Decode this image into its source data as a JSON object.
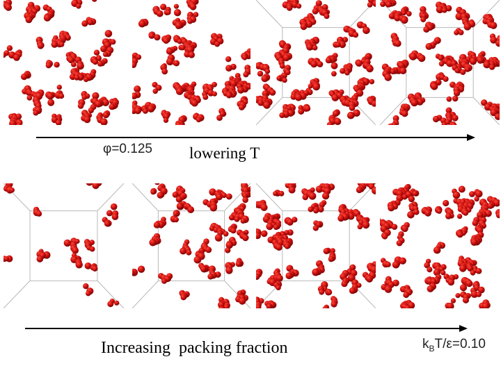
{
  "top_row": {
    "condition_label": "φ=0.125",
    "direction_label": "lowering T",
    "panels": [
      {
        "name": "top-panel-1",
        "density": 0.55,
        "seed": 11,
        "box_outline": false
      },
      {
        "name": "top-panel-2",
        "density": 0.6,
        "seed": 23,
        "box_outline": false
      },
      {
        "name": "top-panel-3",
        "density": 0.62,
        "seed": 37,
        "box_outline": true
      },
      {
        "name": "top-panel-4",
        "density": 0.6,
        "seed": 51,
        "box_outline": true
      }
    ]
  },
  "bottom_row": {
    "direction_label": "Increasing  packing fraction",
    "condition_label": "k",
    "condition_subscript": "B",
    "condition_label_rest": "T/ε=0.10",
    "panels": [
      {
        "name": "bottom-panel-1",
        "density": 0.18,
        "seed": 67,
        "box_outline": true
      },
      {
        "name": "bottom-panel-2",
        "density": 0.5,
        "seed": 79,
        "box_outline": true
      },
      {
        "name": "bottom-panel-3",
        "density": 0.6,
        "seed": 97,
        "box_outline": true
      },
      {
        "name": "bottom-panel-4",
        "density": 0.66,
        "seed": 113,
        "box_outline": false
      }
    ]
  },
  "colors": {
    "particle": "#cc0f0f",
    "particle_dark": "#7a0505",
    "particle_light": "#ff4a3a",
    "direction_text": "#1a1a99",
    "arrow": "#000000"
  }
}
